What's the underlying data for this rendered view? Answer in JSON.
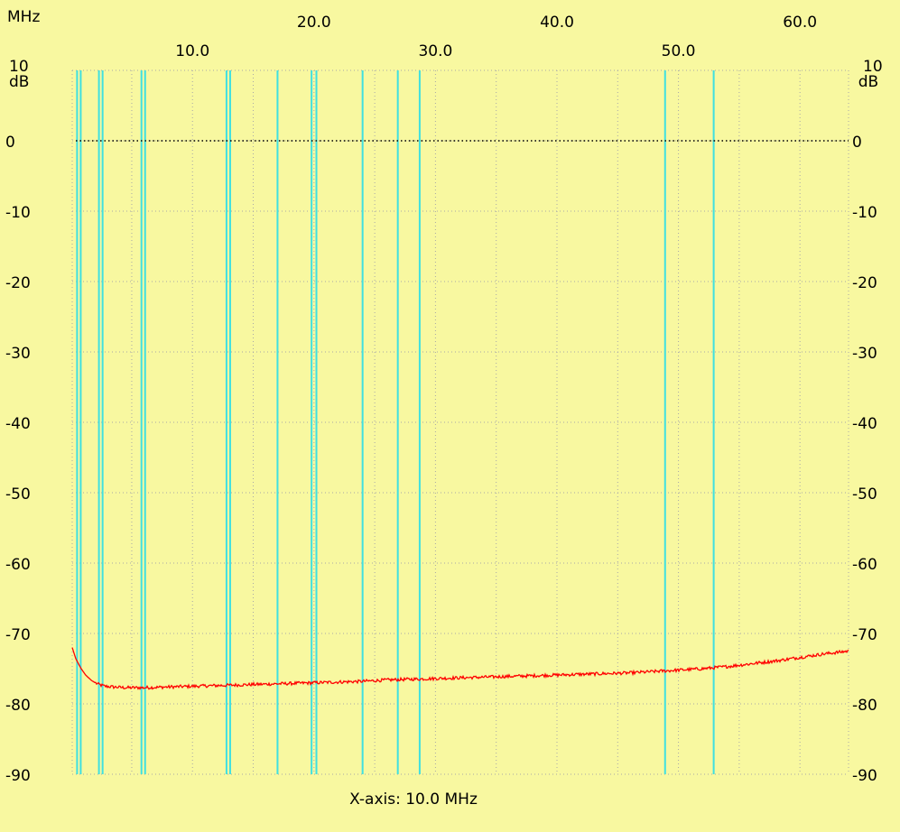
{
  "chart_data": {
    "type": "line",
    "x_unit": "MHz",
    "y_unit": "dB",
    "xlim": [
      0.1,
      64.0
    ],
    "ylim": [
      -90,
      10
    ],
    "x_ticks_top": [
      20.0,
      40.0,
      60.0
    ],
    "x_ticks_bottom": [
      10.0,
      30.0,
      50.0
    ],
    "x_tick_labels_top": [
      "20.0",
      "40.0",
      "60.0"
    ],
    "x_tick_labels_bottom": [
      "10.0",
      "30.0",
      "50.0"
    ],
    "y_ticks": [
      10,
      0,
      -10,
      -20,
      -30,
      -40,
      -50,
      -60,
      -70,
      -80,
      -90
    ],
    "y_tick_labels": [
      "10",
      "0",
      "-10",
      "-20",
      "-30",
      "-40",
      "-50",
      "-60",
      "-70",
      "-80",
      "-90"
    ],
    "grid": true,
    "reference_line": 0,
    "xaxis_caption": "X-axis: 10.0 MHz",
    "markers_mhz": [
      0.5,
      0.8,
      2.3,
      2.6,
      5.8,
      6.1,
      12.8,
      13.1,
      17.0,
      19.8,
      20.2,
      24.0,
      26.9,
      28.7,
      48.9,
      52.9
    ],
    "colors": {
      "background": "#f8f8a0",
      "trace": "#ff0000",
      "marker": "#40e0e0",
      "grid": "#a8a8a8"
    },
    "series": [
      {
        "x": [
          0.1,
          0.4,
          0.8,
          1.2,
          1.7,
          2.2,
          2.8,
          3.5,
          4.5,
          6,
          8,
          10,
          12,
          14,
          16,
          18,
          20,
          22,
          24,
          26,
          28,
          30,
          32,
          34,
          36,
          38,
          40,
          42,
          44,
          46,
          48,
          50,
          52,
          54,
          56,
          58,
          60,
          62,
          64
        ],
        "y": [
          -72.0,
          -73.6,
          -74.9,
          -75.9,
          -76.7,
          -77.2,
          -77.5,
          -77.6,
          -77.7,
          -77.7,
          -77.6,
          -77.5,
          -77.4,
          -77.3,
          -77.2,
          -77.1,
          -77.0,
          -76.9,
          -76.8,
          -76.6,
          -76.5,
          -76.4,
          -76.3,
          -76.2,
          -76.1,
          -76.0,
          -75.9,
          -75.8,
          -75.7,
          -75.6,
          -75.4,
          -75.2,
          -75.0,
          -74.7,
          -74.3,
          -73.9,
          -73.4,
          -72.9,
          -72.5
        ]
      }
    ]
  }
}
